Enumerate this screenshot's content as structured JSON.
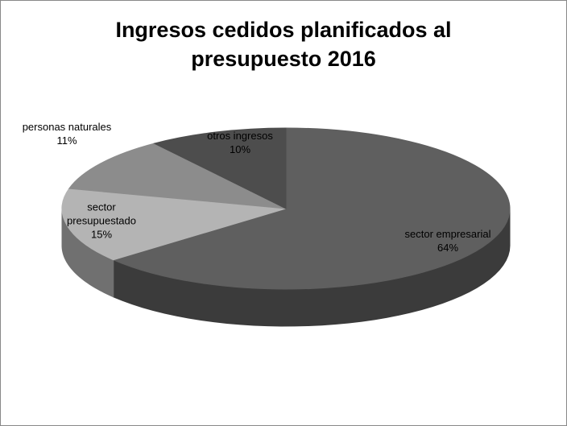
{
  "chart_data": {
    "type": "pie3d",
    "title": "Ingresos cedidos planificados al presupuesto 2016",
    "categories": [
      "sector empresarial",
      "sector presupuestado",
      "personas naturales",
      "otros ingresos"
    ],
    "values": [
      64,
      15,
      11,
      10
    ],
    "value_labels": [
      "64%",
      "15%",
      "11%",
      "10%"
    ],
    "colors": [
      "#5f5f5f",
      "#b4b4b4",
      "#8c8c8c",
      "#4d4d4d"
    ]
  }
}
